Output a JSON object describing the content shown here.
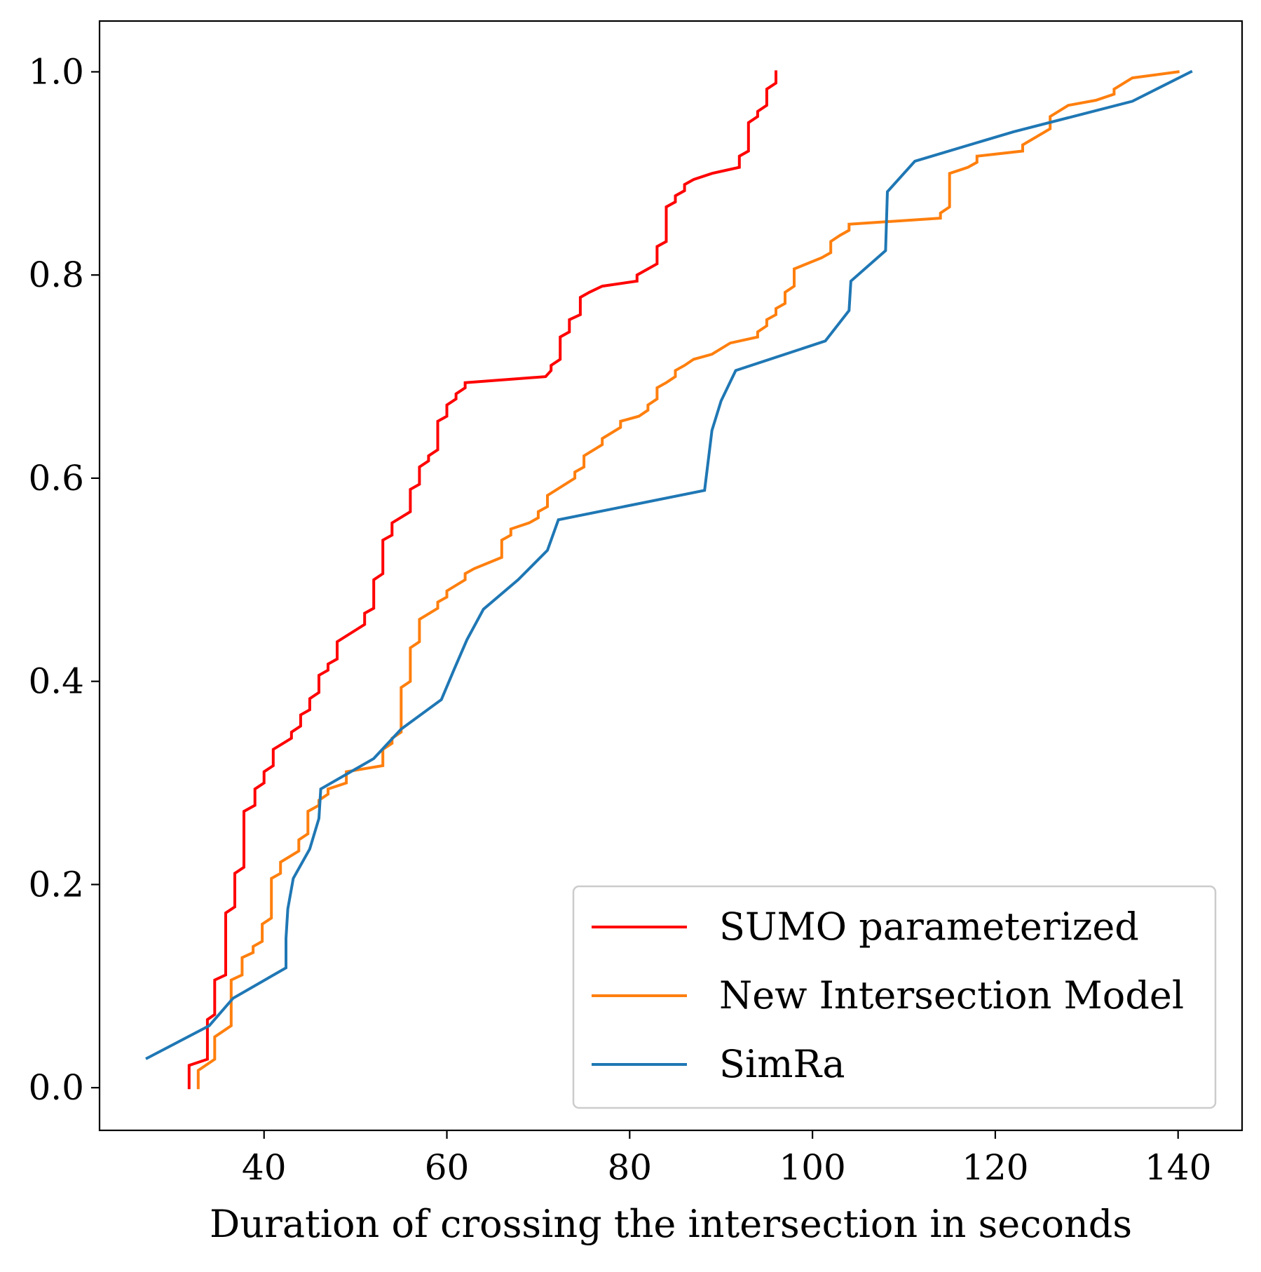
{
  "chart_data": {
    "type": "line",
    "title": "",
    "xlabel": "Duration of crossing the intersection in seconds",
    "ylabel": "",
    "xlim": [
      22,
      147
    ],
    "ylim": [
      -0.042,
      1.05
    ],
    "xticks": [
      40,
      60,
      80,
      100,
      120,
      140
    ],
    "xtick_labels": [
      "40",
      "60",
      "80",
      "100",
      "120",
      "140"
    ],
    "yticks": [
      0.0,
      0.2,
      0.4,
      0.6,
      0.8,
      1.0
    ],
    "ytick_labels": [
      "0.0",
      "0.2",
      "0.4",
      "0.6",
      "0.8",
      "1.0"
    ],
    "grid": false,
    "legend_position": "lower-right",
    "series": [
      {
        "name": "SUMO parameterized",
        "color": "#ff0000",
        "points": [
          [
            31.8,
            0.0
          ],
          [
            31.8,
            0.022
          ],
          [
            33.8,
            0.028
          ],
          [
            33.8,
            0.067
          ],
          [
            34.6,
            0.072
          ],
          [
            34.6,
            0.106
          ],
          [
            35.8,
            0.111
          ],
          [
            35.8,
            0.172
          ],
          [
            36.8,
            0.178
          ],
          [
            36.8,
            0.211
          ],
          [
            37.8,
            0.217
          ],
          [
            37.8,
            0.272
          ],
          [
            39.0,
            0.278
          ],
          [
            39.0,
            0.294
          ],
          [
            40.0,
            0.3
          ],
          [
            40.0,
            0.311
          ],
          [
            41.0,
            0.317
          ],
          [
            41.0,
            0.333
          ],
          [
            43.0,
            0.344
          ],
          [
            43.0,
            0.35
          ],
          [
            44.0,
            0.356
          ],
          [
            44.0,
            0.367
          ],
          [
            45.0,
            0.372
          ],
          [
            45.0,
            0.383
          ],
          [
            46.0,
            0.389
          ],
          [
            46.0,
            0.406
          ],
          [
            47.0,
            0.411
          ],
          [
            47.0,
            0.417
          ],
          [
            48.0,
            0.422
          ],
          [
            48.0,
            0.439
          ],
          [
            51.0,
            0.456
          ],
          [
            51.0,
            0.467
          ],
          [
            52.0,
            0.472
          ],
          [
            52.0,
            0.5
          ],
          [
            53.0,
            0.506
          ],
          [
            53.0,
            0.539
          ],
          [
            54.0,
            0.544
          ],
          [
            54.0,
            0.556
          ],
          [
            56.0,
            0.567
          ],
          [
            56.0,
            0.589
          ],
          [
            57.0,
            0.594
          ],
          [
            57.0,
            0.611
          ],
          [
            58.0,
            0.617
          ],
          [
            58.0,
            0.622
          ],
          [
            59.0,
            0.628
          ],
          [
            59.0,
            0.656
          ],
          [
            60.0,
            0.661
          ],
          [
            60.0,
            0.672
          ],
          [
            61.0,
            0.678
          ],
          [
            61.0,
            0.683
          ],
          [
            62.0,
            0.689
          ],
          [
            62.0,
            0.694
          ],
          [
            70.8,
            0.7
          ],
          [
            71.4,
            0.706
          ],
          [
            71.4,
            0.711
          ],
          [
            72.4,
            0.717
          ],
          [
            72.4,
            0.739
          ],
          [
            73.4,
            0.744
          ],
          [
            73.4,
            0.756
          ],
          [
            74.6,
            0.761
          ],
          [
            74.6,
            0.778
          ],
          [
            75.6,
            0.783
          ],
          [
            77.0,
            0.789
          ],
          [
            80.8,
            0.794
          ],
          [
            80.8,
            0.8
          ],
          [
            83.0,
            0.811
          ],
          [
            83.0,
            0.828
          ],
          [
            84.0,
            0.833
          ],
          [
            84.0,
            0.867
          ],
          [
            85.0,
            0.872
          ],
          [
            85.0,
            0.878
          ],
          [
            86.0,
            0.883
          ],
          [
            86.0,
            0.889
          ],
          [
            87.0,
            0.894
          ],
          [
            89.0,
            0.9
          ],
          [
            92.0,
            0.906
          ],
          [
            92.0,
            0.917
          ],
          [
            93.0,
            0.922
          ],
          [
            93.0,
            0.95
          ],
          [
            94.0,
            0.956
          ],
          [
            94.0,
            0.961
          ],
          [
            95.0,
            0.967
          ],
          [
            95.0,
            0.983
          ],
          [
            96.0,
            0.989
          ],
          [
            96.0,
            1.0
          ]
        ]
      },
      {
        "name": "New Intersection Model",
        "color": "#ff7f0e",
        "points": [
          [
            32.8,
            0.0
          ],
          [
            32.8,
            0.017
          ],
          [
            34.6,
            0.028
          ],
          [
            34.6,
            0.05
          ],
          [
            36.4,
            0.061
          ],
          [
            36.4,
            0.106
          ],
          [
            37.6,
            0.111
          ],
          [
            37.6,
            0.128
          ],
          [
            38.8,
            0.133
          ],
          [
            38.8,
            0.139
          ],
          [
            39.8,
            0.144
          ],
          [
            39.8,
            0.161
          ],
          [
            40.8,
            0.167
          ],
          [
            40.8,
            0.206
          ],
          [
            41.8,
            0.211
          ],
          [
            41.8,
            0.222
          ],
          [
            43.8,
            0.233
          ],
          [
            43.8,
            0.244
          ],
          [
            44.8,
            0.25
          ],
          [
            44.8,
            0.272
          ],
          [
            46.0,
            0.278
          ],
          [
            46.0,
            0.283
          ],
          [
            47.0,
            0.289
          ],
          [
            47.0,
            0.294
          ],
          [
            49.0,
            0.3
          ],
          [
            49.0,
            0.311
          ],
          [
            53.0,
            0.317
          ],
          [
            53.0,
            0.333
          ],
          [
            54.0,
            0.339
          ],
          [
            54.0,
            0.344
          ],
          [
            55.0,
            0.35
          ],
          [
            55.0,
            0.394
          ],
          [
            56.0,
            0.4
          ],
          [
            56.0,
            0.433
          ],
          [
            57.0,
            0.439
          ],
          [
            57.0,
            0.461
          ],
          [
            59.0,
            0.472
          ],
          [
            59.0,
            0.478
          ],
          [
            60.0,
            0.483
          ],
          [
            60.0,
            0.489
          ],
          [
            62.0,
            0.5
          ],
          [
            62.0,
            0.506
          ],
          [
            63.0,
            0.511
          ],
          [
            66.0,
            0.522
          ],
          [
            66.0,
            0.539
          ],
          [
            67.0,
            0.544
          ],
          [
            67.0,
            0.55
          ],
          [
            69.0,
            0.556
          ],
          [
            70.0,
            0.561
          ],
          [
            70.0,
            0.567
          ],
          [
            71.0,
            0.572
          ],
          [
            71.0,
            0.583
          ],
          [
            74.0,
            0.6
          ],
          [
            74.0,
            0.606
          ],
          [
            75.0,
            0.611
          ],
          [
            75.0,
            0.622
          ],
          [
            77.0,
            0.633
          ],
          [
            77.0,
            0.639
          ],
          [
            79.0,
            0.65
          ],
          [
            79.0,
            0.656
          ],
          [
            81.0,
            0.661
          ],
          [
            82.0,
            0.667
          ],
          [
            82.0,
            0.672
          ],
          [
            83.0,
            0.678
          ],
          [
            83.0,
            0.689
          ],
          [
            84.0,
            0.694
          ],
          [
            85.0,
            0.7
          ],
          [
            85.0,
            0.706
          ],
          [
            86.0,
            0.711
          ],
          [
            87.0,
            0.717
          ],
          [
            89.0,
            0.722
          ],
          [
            91.0,
            0.733
          ],
          [
            94.0,
            0.739
          ],
          [
            94.0,
            0.744
          ],
          [
            95.0,
            0.75
          ],
          [
            95.0,
            0.756
          ],
          [
            96.0,
            0.761
          ],
          [
            96.0,
            0.767
          ],
          [
            97.0,
            0.772
          ],
          [
            97.0,
            0.783
          ],
          [
            98.0,
            0.789
          ],
          [
            98.0,
            0.806
          ],
          [
            101.0,
            0.817
          ],
          [
            102.0,
            0.822
          ],
          [
            102.0,
            0.833
          ],
          [
            103.0,
            0.839
          ],
          [
            104.0,
            0.844
          ],
          [
            104.0,
            0.85
          ],
          [
            114.0,
            0.856
          ],
          [
            114.0,
            0.861
          ],
          [
            115.0,
            0.867
          ],
          [
            115.0,
            0.9
          ],
          [
            117.0,
            0.906
          ],
          [
            118.0,
            0.911
          ],
          [
            118.0,
            0.917
          ],
          [
            123.0,
            0.922
          ],
          [
            123.0,
            0.928
          ],
          [
            126.0,
            0.944
          ],
          [
            126.0,
            0.956
          ],
          [
            128.0,
            0.967
          ],
          [
            131.0,
            0.972
          ],
          [
            133.0,
            0.978
          ],
          [
            133.0,
            0.983
          ],
          [
            135.0,
            0.994
          ],
          [
            140.0,
            1.0
          ]
        ]
      },
      {
        "name": "SimRa",
        "color": "#1f77b4",
        "points": [
          [
            27.2,
            0.029
          ],
          [
            34.0,
            0.061
          ],
          [
            36.6,
            0.088
          ],
          [
            42.4,
            0.118
          ],
          [
            42.4,
            0.147
          ],
          [
            42.6,
            0.176
          ],
          [
            43.2,
            0.206
          ],
          [
            45.0,
            0.235
          ],
          [
            46.0,
            0.265
          ],
          [
            46.2,
            0.294
          ],
          [
            52.0,
            0.324
          ],
          [
            55.0,
            0.353
          ],
          [
            59.4,
            0.382
          ],
          [
            60.8,
            0.412
          ],
          [
            62.2,
            0.441
          ],
          [
            64.0,
            0.471
          ],
          [
            67.8,
            0.5
          ],
          [
            71.0,
            0.529
          ],
          [
            72.2,
            0.559
          ],
          [
            88.2,
            0.588
          ],
          [
            89.0,
            0.647
          ],
          [
            90.0,
            0.676
          ],
          [
            91.6,
            0.706
          ],
          [
            101.4,
            0.735
          ],
          [
            104.0,
            0.765
          ],
          [
            104.2,
            0.794
          ],
          [
            108.0,
            0.824
          ],
          [
            108.2,
            0.882
          ],
          [
            111.2,
            0.912
          ],
          [
            122.0,
            0.941
          ],
          [
            135.0,
            0.971
          ],
          [
            141.4,
            1.0
          ]
        ]
      }
    ]
  }
}
